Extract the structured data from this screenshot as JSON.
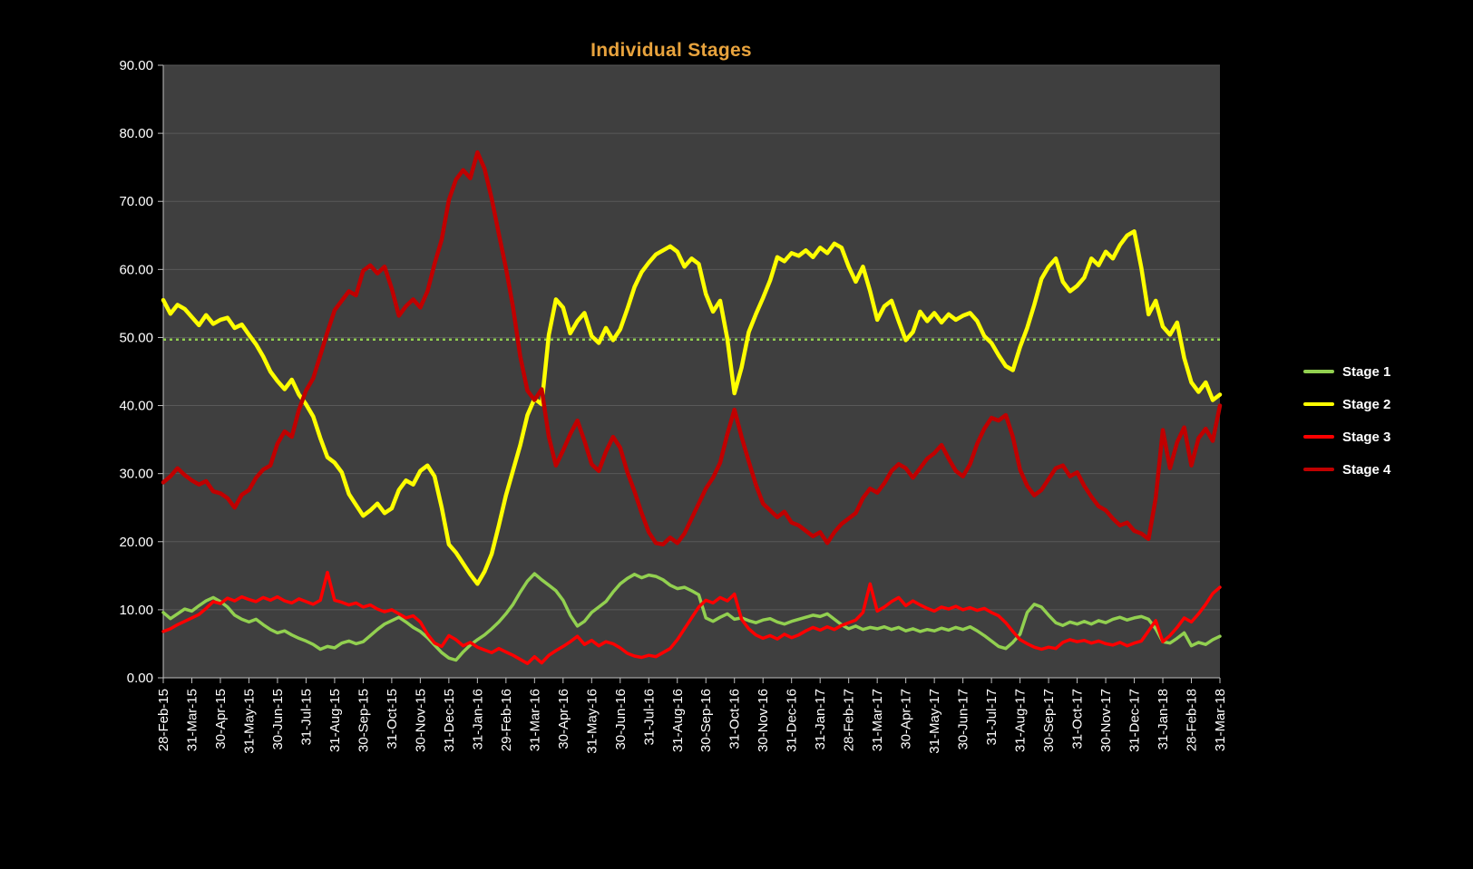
{
  "title": "Individual Stages",
  "title_color": "#E8A33D",
  "legend": [
    {
      "label": "Stage 1",
      "color": "#92D050"
    },
    {
      "label": "Stage 2",
      "color": "#FFFF00"
    },
    {
      "label": "Stage 3",
      "color": "#FF0000"
    },
    {
      "label": "Stage 4",
      "color": "#C00000"
    }
  ],
  "chart_data": {
    "type": "line",
    "title": "Individual Stages",
    "ylim": [
      0,
      90
    ],
    "grid": true,
    "legend_position": "right",
    "y_ticks": [
      "0.00",
      "10.00",
      "20.00",
      "30.00",
      "40.00",
      "50.00",
      "60.00",
      "70.00",
      "80.00",
      "90.00"
    ],
    "x_label_every": 4,
    "x_tick_labels": [
      "28-Feb-15",
      "31-Mar-15",
      "30-Apr-15",
      "31-May-15",
      "30-Jun-15",
      "31-Jul-15",
      "31-Aug-15",
      "30-Sep-15",
      "31-Oct-15",
      "30-Nov-15",
      "31-Dec-15",
      "31-Jan-16",
      "29-Feb-16",
      "31-Mar-16",
      "30-Apr-16",
      "31-May-16",
      "30-Jun-16",
      "31-Jul-16",
      "31-Aug-16",
      "30-Sep-16",
      "31-Oct-16",
      "30-Nov-16",
      "31-Dec-16",
      "31-Jan-17",
      "28-Feb-17",
      "31-Mar-17",
      "30-Apr-17",
      "31-May-17",
      "30-Jun-17",
      "31-Jul-17",
      "31-Aug-17",
      "30-Sep-17",
      "31-Oct-17",
      "30-Nov-17",
      "31-Dec-17",
      "31-Jan-18",
      "28-Feb-18",
      "31-Mar-18"
    ],
    "reference_line": {
      "value": 49.7,
      "style": "dotted",
      "color": "#92D050"
    },
    "colors": {
      "plot_bg": "#3F3F3F",
      "page_bg": "#000000",
      "gridline": "#595959",
      "axis_text": "#FFFFFF",
      "axis_line": "#BFBFBF"
    },
    "series": [
      {
        "name": "Stage 1",
        "color": "#92D050",
        "width": 3.5,
        "values": [
          9.6,
          8.7,
          9.4,
          10.1,
          9.8,
          10.6,
          11.3,
          11.8,
          11.2,
          10.4,
          9.2,
          8.6,
          8.2,
          8.6,
          7.8,
          7.1,
          6.6,
          6.9,
          6.3,
          5.8,
          5.4,
          4.9,
          4.2,
          4.6,
          4.4,
          5.1,
          5.4,
          5.0,
          5.3,
          6.2,
          7.1,
          7.9,
          8.4,
          8.9,
          8.2,
          7.4,
          6.8,
          5.9,
          4.8,
          3.7,
          2.9,
          2.6,
          3.8,
          4.8,
          5.6,
          6.3,
          7.2,
          8.2,
          9.4,
          10.8,
          12.6,
          14.2,
          15.3,
          14.4,
          13.6,
          12.8,
          11.4,
          9.2,
          7.6,
          8.3,
          9.6,
          10.4,
          11.2,
          12.6,
          13.8,
          14.6,
          15.2,
          14.7,
          15.1,
          14.9,
          14.4,
          13.6,
          13.1,
          13.3,
          12.8,
          12.2,
          8.8,
          8.3,
          8.9,
          9.4,
          8.6,
          8.8,
          8.4,
          8.1,
          8.5,
          8.7,
          8.2,
          7.9,
          8.3,
          8.6,
          8.9,
          9.2,
          9.0,
          9.4,
          8.6,
          7.8,
          7.2,
          7.6,
          7.1,
          7.4,
          7.2,
          7.5,
          7.1,
          7.4,
          6.9,
          7.2,
          6.8,
          7.1,
          6.9,
          7.3,
          7.0,
          7.4,
          7.1,
          7.5,
          6.9,
          6.2,
          5.4,
          4.6,
          4.3,
          5.2,
          6.4,
          9.6,
          10.8,
          10.4,
          9.2,
          8.1,
          7.7,
          8.2,
          7.9,
          8.3,
          7.9,
          8.4,
          8.1,
          8.6,
          8.9,
          8.5,
          8.8,
          9.0,
          8.6,
          7.2,
          5.3,
          5.1,
          5.8,
          6.6,
          4.7,
          5.2,
          4.9,
          5.6,
          6.1
        ]
      },
      {
        "name": "Stage 2",
        "color": "#FFFF00",
        "width": 4.5,
        "values": [
          55.5,
          53.5,
          54.8,
          54.2,
          53.0,
          51.8,
          53.3,
          52.0,
          52.6,
          52.9,
          51.4,
          51.9,
          50.4,
          49.0,
          47.2,
          45.0,
          43.6,
          42.4,
          43.8,
          41.6,
          40.2,
          38.4,
          35.2,
          32.4,
          31.6,
          30.2,
          27.0,
          25.4,
          23.8,
          24.6,
          25.6,
          24.2,
          24.9,
          27.6,
          29.0,
          28.4,
          30.4,
          31.2,
          29.6,
          25.0,
          19.6,
          18.4,
          16.8,
          15.2,
          13.8,
          15.6,
          18.2,
          22.4,
          26.8,
          30.5,
          34.2,
          38.6,
          41.0,
          40.2,
          50.4,
          55.6,
          54.4,
          50.6,
          52.4,
          53.6,
          50.2,
          49.2,
          51.4,
          49.6,
          51.2,
          54.2,
          57.4,
          59.6,
          61.0,
          62.2,
          62.8,
          63.4,
          62.6,
          60.4,
          61.6,
          60.8,
          56.4,
          53.8,
          55.4,
          49.8,
          41.8,
          45.6,
          50.8,
          53.4,
          55.8,
          58.4,
          61.8,
          61.2,
          62.4,
          62.0,
          62.8,
          61.8,
          63.2,
          62.4,
          63.8,
          63.2,
          60.4,
          58.2,
          60.4,
          56.8,
          52.6,
          54.6,
          55.4,
          52.4,
          49.6,
          50.8,
          53.8,
          52.4,
          53.6,
          52.2,
          53.4,
          52.6,
          53.2,
          53.6,
          52.4,
          50.2,
          49.2,
          47.4,
          45.8,
          45.2,
          48.6,
          51.4,
          54.8,
          58.6,
          60.4,
          61.6,
          58.2,
          56.8,
          57.6,
          58.8,
          61.6,
          60.6,
          62.6,
          61.6,
          63.6,
          65.0,
          65.6,
          60.2,
          53.4,
          55.4,
          51.6,
          50.4,
          52.2,
          47.0,
          43.4,
          42.0,
          43.4,
          40.8,
          41.6
        ]
      },
      {
        "name": "Stage 3",
        "color": "#FF0000",
        "width": 3.5,
        "values": [
          6.8,
          7.2,
          7.8,
          8.3,
          8.8,
          9.3,
          10.2,
          11.2,
          10.9,
          11.7,
          11.3,
          11.9,
          11.5,
          11.2,
          11.8,
          11.4,
          11.9,
          11.3,
          11.0,
          11.6,
          11.2,
          10.8,
          11.4,
          15.5,
          11.4,
          11.1,
          10.7,
          11.0,
          10.4,
          10.7,
          10.1,
          9.7,
          10.0,
          9.4,
          8.8,
          9.1,
          8.2,
          6.4,
          5.1,
          4.6,
          6.2,
          5.6,
          4.7,
          5.2,
          4.5,
          4.1,
          3.7,
          4.3,
          3.8,
          3.3,
          2.7,
          2.1,
          3.1,
          2.2,
          3.3,
          4.0,
          4.6,
          5.3,
          6.1,
          4.9,
          5.5,
          4.7,
          5.3,
          5.0,
          4.4,
          3.6,
          3.2,
          3.0,
          3.3,
          3.1,
          3.7,
          4.3,
          5.6,
          7.2,
          8.8,
          10.4,
          11.4,
          11.0,
          11.8,
          11.3,
          12.3,
          8.6,
          7.2,
          6.3,
          5.8,
          6.2,
          5.7,
          6.4,
          5.9,
          6.3,
          6.9,
          7.4,
          7.0,
          7.5,
          7.1,
          7.7,
          8.1,
          8.5,
          9.6,
          13.8,
          9.8,
          10.4,
          11.2,
          11.8,
          10.6,
          11.3,
          10.7,
          10.2,
          9.8,
          10.4,
          10.1,
          10.5,
          10.0,
          10.3,
          9.9,
          10.2,
          9.6,
          9.1,
          8.1,
          6.8,
          5.6,
          5.0,
          4.5,
          4.2,
          4.5,
          4.3,
          5.2,
          5.6,
          5.3,
          5.5,
          5.1,
          5.4,
          5.0,
          4.8,
          5.2,
          4.7,
          5.1,
          5.4,
          6.9,
          8.4,
          5.3,
          6.2,
          7.4,
          8.8,
          8.2,
          9.4,
          10.8,
          12.4,
          13.3
        ]
      },
      {
        "name": "Stage 4",
        "color": "#C00000",
        "width": 4.5,
        "values": [
          28.7,
          29.6,
          30.8,
          29.8,
          29.0,
          28.4,
          28.9,
          27.4,
          27.1,
          26.4,
          25.0,
          26.9,
          27.6,
          29.4,
          30.6,
          31.2,
          34.4,
          36.2,
          35.4,
          39.4,
          42.2,
          44.0,
          47.4,
          50.8,
          54.0,
          55.4,
          56.8,
          56.2,
          59.8,
          60.6,
          59.4,
          60.4,
          57.2,
          53.2,
          54.6,
          55.6,
          54.4,
          56.8,
          60.8,
          64.4,
          70.2,
          73.2,
          74.6,
          73.4,
          77.2,
          74.8,
          70.4,
          65.2,
          60.2,
          54.4,
          47.2,
          42.2,
          40.8,
          42.4,
          35.4,
          31.2,
          33.4,
          35.8,
          37.8,
          34.8,
          31.4,
          30.4,
          33.2,
          35.4,
          33.8,
          30.2,
          27.4,
          24.2,
          21.4,
          19.8,
          19.6,
          20.6,
          19.8,
          21.2,
          23.4,
          25.6,
          27.8,
          29.4,
          31.6,
          35.8,
          39.4,
          35.4,
          31.8,
          28.4,
          25.6,
          24.6,
          23.6,
          24.4,
          22.8,
          22.4,
          21.6,
          20.8,
          21.4,
          19.8,
          21.4,
          22.6,
          23.4,
          24.2,
          26.4,
          27.8,
          27.2,
          28.6,
          30.4,
          31.4,
          30.8,
          29.4,
          30.8,
          32.2,
          33.0,
          34.2,
          32.2,
          30.4,
          29.6,
          31.4,
          34.4,
          36.6,
          38.2,
          37.8,
          38.6,
          35.4,
          30.6,
          28.2,
          26.8,
          27.6,
          29.2,
          30.8,
          31.2,
          29.6,
          30.2,
          28.2,
          26.6,
          25.2,
          24.6,
          23.4,
          22.4,
          22.8,
          21.6,
          21.2,
          20.4,
          26.4,
          36.4,
          30.8,
          34.6,
          36.8,
          31.2,
          35.2,
          36.6,
          34.8,
          40.0
        ]
      }
    ]
  }
}
